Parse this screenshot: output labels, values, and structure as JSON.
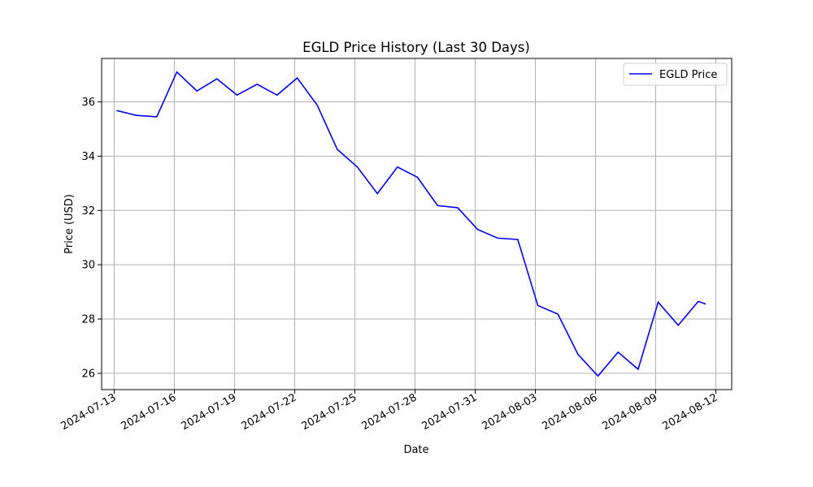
{
  "chart_data": {
    "type": "line",
    "title": "EGLD Price History (Last 30 Days)",
    "xlabel": "Date",
    "ylabel": "Price (USD)",
    "x_ticks": [
      "2024-07-13",
      "2024-07-16",
      "2024-07-19",
      "2024-07-22",
      "2024-07-25",
      "2024-07-28",
      "2024-07-31",
      "2024-08-03",
      "2024-08-06",
      "2024-08-09",
      "2024-08-12"
    ],
    "y_ticks": [
      26,
      28,
      30,
      32,
      34,
      36
    ],
    "xlim": [
      "2024-07-12T09:00",
      "2024-08-12T19:00"
    ],
    "ylim": [
      25.4,
      37.6
    ],
    "grid": true,
    "legend_position": "top-right",
    "line_color": "#0000ff",
    "series": [
      {
        "name": "EGLD Price",
        "x": [
          "2024-07-13T03:00",
          "2024-07-14T03:00",
          "2024-07-15T03:00",
          "2024-07-16T03:00",
          "2024-07-17T03:00",
          "2024-07-18T03:00",
          "2024-07-19T03:00",
          "2024-07-20T03:00",
          "2024-07-21T03:00",
          "2024-07-22T03:00",
          "2024-07-23T03:00",
          "2024-07-24T03:00",
          "2024-07-25T03:00",
          "2024-07-26T03:00",
          "2024-07-27T03:00",
          "2024-07-28T03:00",
          "2024-07-29T03:00",
          "2024-07-30T03:00",
          "2024-07-31T03:00",
          "2024-08-01T03:00",
          "2024-08-02T03:00",
          "2024-08-03T03:00",
          "2024-08-04T03:00",
          "2024-08-05T03:00",
          "2024-08-06T03:00",
          "2024-08-07T03:00",
          "2024-08-08T03:00",
          "2024-08-09T03:00",
          "2024-08-10T03:00",
          "2024-08-11T03:00",
          "2024-08-11T12:00"
        ],
        "values": [
          35.68,
          35.5,
          35.45,
          37.1,
          36.4,
          36.85,
          36.25,
          36.65,
          36.25,
          36.88,
          35.88,
          34.25,
          33.6,
          32.62,
          33.6,
          33.22,
          32.18,
          32.1,
          31.3,
          30.98,
          30.93,
          28.5,
          28.18,
          26.7,
          25.9,
          26.78,
          26.15,
          28.62,
          27.77,
          28.65,
          28.55
        ]
      }
    ]
  }
}
